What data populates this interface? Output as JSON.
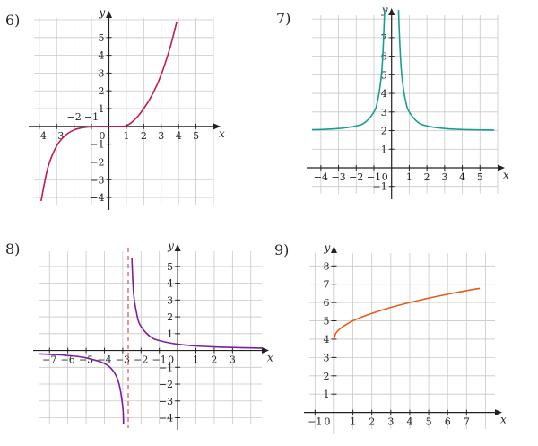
{
  "chart_data": [
    {
      "type": "line",
      "label": "6)",
      "xlabel": "x",
      "ylabel": "y",
      "xlim": [
        -4.3,
        6
      ],
      "ylim": [
        -4.4,
        6.1
      ],
      "x_ticks": [
        -4,
        -3,
        1,
        2,
        3,
        4,
        5
      ],
      "x_ticks_extra": [
        -2,
        -1
      ],
      "y_ticks": [
        -4,
        -3,
        -2,
        -1,
        1,
        2,
        3,
        4,
        5
      ],
      "origin_label": "0",
      "grid": true,
      "color": "#c2185b",
      "series": [
        {
          "x": [
            -3.9,
            -3.5,
            -3,
            -2.5,
            -2,
            -1.5,
            -1,
            -0.5,
            0,
            0.5,
            1,
            1.5,
            2,
            2.5,
            3,
            3.5,
            3.9
          ],
          "values": [
            -4.2,
            -2.3,
            -1.1,
            -0.5,
            -0.2,
            -0.07,
            -0.02,
            0,
            0,
            0,
            0.04,
            0.4,
            1.0,
            1.8,
            2.9,
            4.4,
            5.9
          ]
        }
      ]
    },
    {
      "type": "line",
      "label": "7)",
      "xlabel": "x",
      "ylabel": "y",
      "xlim": [
        -4.5,
        6
      ],
      "ylim": [
        -1.4,
        8.2
      ],
      "x_ticks": [
        -4,
        -3,
        -2,
        -1,
        1,
        2,
        3,
        4,
        5
      ],
      "y_ticks": [
        -1,
        1,
        2,
        3,
        4,
        5,
        6,
        7
      ],
      "origin_label": "0",
      "grid": true,
      "color": "#1a9e94",
      "series": [
        {
          "x": [
            -4.5,
            -4,
            -3,
            -2,
            -1.5,
            -1,
            -0.8,
            -0.6,
            -0.5,
            -0.4,
            -0.35
          ],
          "values": [
            2.05,
            2.06,
            2.11,
            2.25,
            2.44,
            3.0,
            3.56,
            4.78,
            6.0,
            8.25,
            10.2
          ]
        },
        {
          "x": [
            0.35,
            0.4,
            0.5,
            0.6,
            0.8,
            1,
            1.5,
            2,
            3,
            4,
            5,
            5.8
          ],
          "values": [
            10.2,
            8.25,
            6.0,
            4.78,
            3.56,
            3.0,
            2.44,
            2.25,
            2.11,
            2.06,
            2.04,
            2.03
          ]
        }
      ]
    },
    {
      "type": "line",
      "label": "8)",
      "xlabel": "x",
      "ylabel": "y",
      "xlim": [
        -7.6,
        4.6
      ],
      "ylim": [
        -4.4,
        5.9
      ],
      "x_ticks": [
        -7,
        -6,
        -5,
        -4,
        -3,
        -2,
        -1,
        1,
        2,
        3
      ],
      "y_ticks": [
        -4,
        -3,
        -2,
        -1,
        1,
        2,
        3,
        4,
        5
      ],
      "origin_label": "0",
      "asymptote_x": -2.7,
      "grid": true,
      "color": "#7b1fa2",
      "asymptote_color": "#e05050",
      "series": [
        {
          "x": [
            -7.6,
            -7,
            -6,
            -5,
            -4,
            -3.5,
            -3.2,
            -3,
            -2.95
          ],
          "values": [
            -0.2,
            -0.23,
            -0.3,
            -0.44,
            -0.77,
            -1.25,
            -2.0,
            -3.33,
            -4.4
          ]
        },
        {
          "x": [
            -2.5,
            -2.4,
            -2.2,
            -2,
            -1.5,
            -1,
            0,
            1,
            2,
            3,
            4,
            4.6
          ],
          "values": [
            5.5,
            3.33,
            2.0,
            1.43,
            0.83,
            0.59,
            0.37,
            0.27,
            0.21,
            0.18,
            0.15,
            0.14
          ]
        }
      ]
    },
    {
      "type": "line",
      "label": "9)",
      "xlabel": "x",
      "ylabel": "y",
      "xlim": [
        -1.3,
        8.5
      ],
      "ylim": [
        -0.9,
        8.7
      ],
      "x_ticks": [
        -1,
        1,
        2,
        3,
        4,
        5,
        6,
        7
      ],
      "y_ticks": [
        1,
        2,
        3,
        4,
        5,
        6,
        7,
        8
      ],
      "origin_label": "0",
      "grid": true,
      "color": "#e65c1e",
      "series": [
        {
          "x": [
            0,
            0.1,
            0.3,
            0.6,
            1,
            1.5,
            2,
            3,
            4,
            5,
            6,
            7,
            7.7
          ],
          "values": [
            4.0,
            4.32,
            4.55,
            4.77,
            5.0,
            5.22,
            5.41,
            5.73,
            6.0,
            6.24,
            6.45,
            6.65,
            6.77
          ]
        }
      ]
    }
  ]
}
